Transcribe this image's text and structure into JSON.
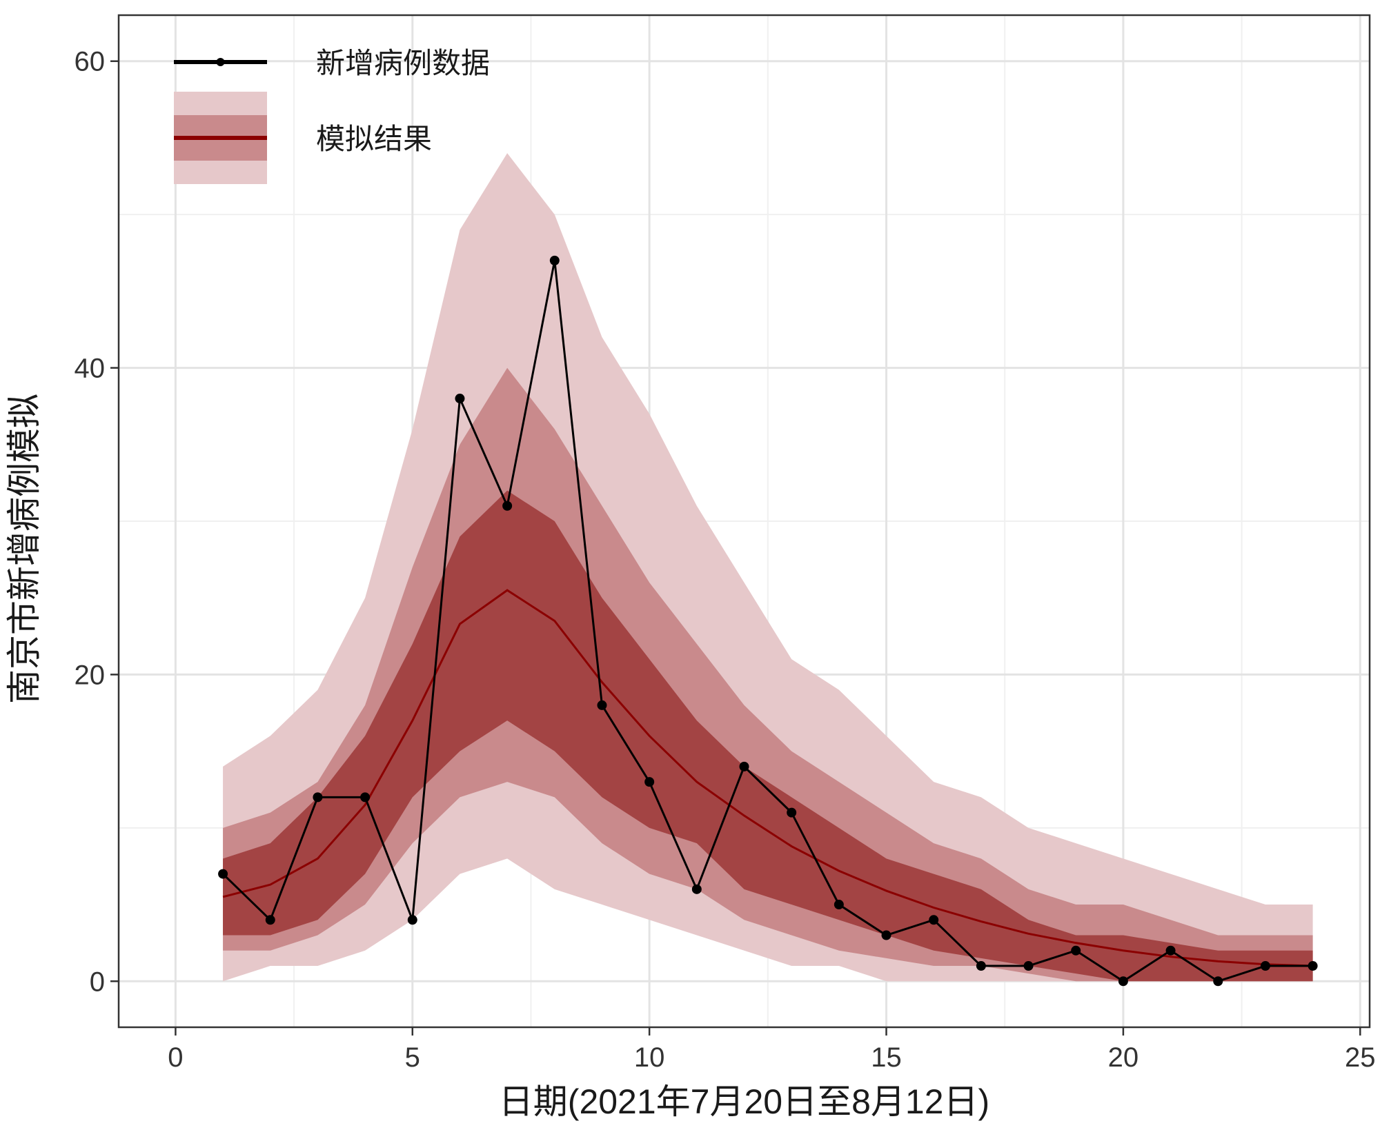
{
  "chart_data": {
    "type": "line",
    "title": "",
    "xlabel": "日期(2021年7月20日至8月12日)",
    "ylabel": "南京市新增病例模拟",
    "xlim": [
      -1.2,
      25.2
    ],
    "ylim": [
      -3,
      63
    ],
    "xticks": [
      0,
      5,
      10,
      15,
      20,
      25
    ],
    "yticks": [
      0,
      20,
      40,
      60
    ],
    "x_minor_grid": [
      2.5,
      7.5,
      12.5,
      17.5,
      22.5
    ],
    "y_minor_grid": [
      10,
      30,
      50
    ],
    "grid": true,
    "legend_position": "top-left",
    "series": [
      {
        "name": "新增病例数据",
        "kind": "observed",
        "color": "#000000",
        "x": [
          1,
          2,
          3,
          4,
          5,
          6,
          7,
          8,
          9,
          10,
          11,
          12,
          13,
          14,
          15,
          16,
          17,
          18,
          19,
          20,
          21,
          22,
          23,
          24
        ],
        "values": [
          7,
          4,
          12,
          12,
          4,
          38,
          31,
          47,
          18,
          13,
          6,
          14,
          11,
          5,
          3,
          4,
          1,
          1,
          2,
          0,
          2,
          0,
          1,
          1
        ]
      },
      {
        "name": "模拟结果",
        "kind": "simulated",
        "color": "#8b0000",
        "x": [
          1,
          2,
          3,
          4,
          5,
          6,
          7,
          8,
          9,
          10,
          11,
          12,
          13,
          14,
          15,
          16,
          17,
          18,
          19,
          20,
          21,
          22,
          23,
          24
        ],
        "values": [
          5.5,
          6.3,
          8,
          11.5,
          17,
          23.3,
          25.5,
          23.5,
          19.5,
          16,
          13,
          10.8,
          8.8,
          7.2,
          5.9,
          4.8,
          3.9,
          3.1,
          2.5,
          2,
          1.6,
          1.3,
          1.1,
          1
        ],
        "bands": [
          {
            "level": "outer",
            "color": "#e6c8ca",
            "lower": [
              0,
              1,
              1,
              2,
              4,
              7,
              8,
              6,
              5,
              4,
              3,
              2,
              1,
              1,
              0,
              0,
              0,
              0,
              0,
              0,
              0,
              0,
              0,
              0
            ],
            "upper": [
              14,
              16,
              19,
              25,
              36,
              49,
              54,
              50,
              42,
              37,
              31,
              26,
              21,
              19,
              16,
              13,
              12,
              10,
              9,
              8,
              7,
              6,
              5,
              5
            ]
          },
          {
            "level": "middle",
            "color": "#c98a8c",
            "lower": [
              2,
              2,
              3,
              5,
              9,
              12,
              13,
              12,
              9,
              7,
              6,
              4,
              3,
              2,
              1.5,
              1,
              1,
              0.5,
              0,
              0,
              0,
              0,
              0,
              0
            ],
            "upper": [
              10,
              11,
              13,
              18,
              27,
              35,
              40,
              36,
              31,
              26,
              22,
              18,
              15,
              13,
              11,
              9,
              8,
              6,
              5,
              5,
              4,
              3,
              3,
              3
            ]
          },
          {
            "level": "inner",
            "color": "#a34444",
            "lower": [
              3,
              3,
              4,
              7,
              12,
              15,
              17,
              15,
              12,
              10,
              9,
              6,
              5,
              4,
              3,
              2,
              1.5,
              1,
              0.5,
              0,
              0,
              0,
              0,
              0
            ],
            "upper": [
              8,
              9,
              12,
              16,
              22,
              29,
              32,
              30,
              25,
              21,
              17,
              14,
              12,
              10,
              8,
              7,
              6,
              4,
              3,
              3,
              2.5,
              2,
              2,
              2
            ]
          }
        ]
      }
    ]
  }
}
